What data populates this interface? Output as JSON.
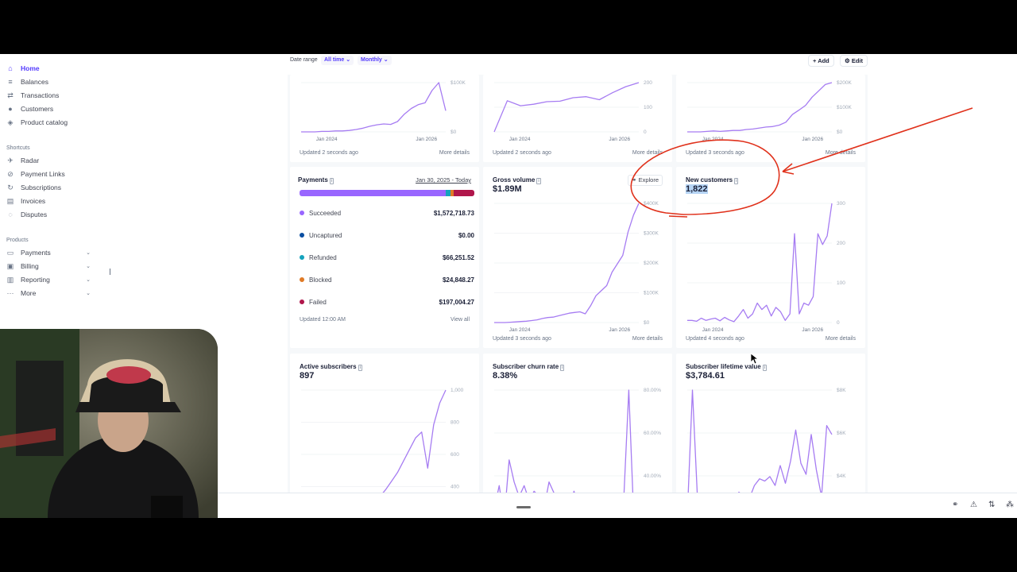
{
  "sidebar": {
    "items": [
      {
        "label": "Home",
        "icon": "home-icon",
        "active": true
      },
      {
        "label": "Balances",
        "icon": "balances-icon"
      },
      {
        "label": "Transactions",
        "icon": "transactions-icon"
      },
      {
        "label": "Customers",
        "icon": "customers-icon"
      },
      {
        "label": "Product catalog",
        "icon": "product-catalog-icon"
      }
    ],
    "shortcuts_heading": "Shortcuts",
    "shortcuts": [
      {
        "label": "Radar",
        "icon": "radar-icon"
      },
      {
        "label": "Payment Links",
        "icon": "link-icon"
      },
      {
        "label": "Subscriptions",
        "icon": "subscriptions-icon"
      },
      {
        "label": "Invoices",
        "icon": "invoice-icon"
      },
      {
        "label": "Disputes",
        "icon": "disputes-icon"
      }
    ],
    "products_heading": "Products",
    "products": [
      {
        "label": "Payments",
        "icon": "payments-icon"
      },
      {
        "label": "Billing",
        "icon": "billing-icon"
      },
      {
        "label": "Reporting",
        "icon": "reporting-icon"
      },
      {
        "label": "More",
        "icon": "more-icon"
      }
    ]
  },
  "toolbar": {
    "date_range_label": "Date range",
    "date_range_value": "All time",
    "interval_value": "Monthly",
    "add_label": "Add",
    "edit_label": "Edit"
  },
  "cards": {
    "top1": {
      "footer": "Updated 2 seconds ago",
      "more": "More details"
    },
    "top2": {
      "footer": "Updated 2 seconds ago",
      "more": "More details"
    },
    "top3": {
      "footer": "Updated 3 seconds ago",
      "more": "More details"
    },
    "payments": {
      "title": "Payments",
      "date_range": "Jan 30, 2025 - Today",
      "rows": [
        {
          "label": "Succeeded",
          "value": "$1,572,718.73",
          "color": "#9966ff"
        },
        {
          "label": "Uncaptured",
          "value": "$0.00",
          "color": "#0a4ea1"
        },
        {
          "label": "Refunded",
          "value": "$66,251.52",
          "color": "#15a3bd"
        },
        {
          "label": "Blocked",
          "value": "$24,848.27",
          "color": "#e07a26"
        },
        {
          "label": "Failed",
          "value": "$197,004.27",
          "color": "#b0164b"
        }
      ],
      "footer": "Updated 12:00 AM",
      "view_all": "View all"
    },
    "gross_volume": {
      "title": "Gross volume",
      "value": "$1.89M",
      "explore": "Explore",
      "footer": "Updated 3 seconds ago",
      "more": "More details"
    },
    "new_customers": {
      "title": "New customers",
      "value": "1,822",
      "footer": "Updated 4 seconds ago",
      "more": "More details"
    },
    "active_subscribers": {
      "title": "Active subscribers",
      "value": "897"
    },
    "churn_rate": {
      "title": "Subscriber churn rate",
      "value": "8.38%"
    },
    "lifetime_value": {
      "title": "Subscriber lifetime value",
      "value": "$3,784.61"
    }
  },
  "chart_data": [
    {
      "type": "line",
      "name": "top1",
      "x_ticks": [
        "Jan 2024",
        "Jan 2026"
      ],
      "y_ticks": [
        "$0",
        "$100K"
      ],
      "values": [
        0,
        0,
        0,
        0.01,
        0.01,
        0.02,
        0.02,
        0.03,
        0.05,
        0.08,
        0.12,
        0.15,
        0.17,
        0.16,
        0.22,
        0.38,
        0.5,
        0.58,
        0.62,
        0.88,
        1.05,
        0.45
      ]
    },
    {
      "type": "line",
      "name": "top2",
      "x_ticks": [
        "Jan 2024",
        "Jan 2026"
      ],
      "y_ticks": [
        "0",
        "100",
        "200"
      ],
      "values": [
        0,
        0.62,
        0.52,
        0.55,
        0.6,
        0.61,
        0.68,
        0.7,
        0.64,
        0.78,
        0.9,
        0.98
      ]
    },
    {
      "type": "line",
      "name": "top3",
      "x_ticks": [
        "Jan 2024",
        "Jan 2026"
      ],
      "y_ticks": [
        "$0",
        "$100K",
        "$200K"
      ],
      "values": [
        0,
        0,
        0,
        0.01,
        0.02,
        0.01,
        0.02,
        0.03,
        0.03,
        0.05,
        0.06,
        0.08,
        0.1,
        0.11,
        0.14,
        0.2,
        0.36,
        0.45,
        0.55,
        0.72,
        0.85,
        0.98,
        1.02
      ]
    },
    {
      "type": "line",
      "name": "gross_volume",
      "x_ticks": [
        "Jan 2024",
        "Jan 2026"
      ],
      "y_ticks": [
        "$0",
        "$100K",
        "$200K",
        "$300K",
        "$400K"
      ],
      "values": [
        0,
        0,
        0,
        1,
        2,
        3,
        4,
        6,
        8,
        12,
        15,
        16,
        20,
        24,
        28,
        30,
        32,
        26,
        50,
        80,
        95,
        110,
        150,
        175,
        200,
        270,
        320,
        355
      ]
    },
    {
      "type": "line",
      "name": "new_customers",
      "x_ticks": [
        "Jan 2024",
        "Jan 2026"
      ],
      "y_ticks": [
        "0",
        "100",
        "200",
        "300"
      ],
      "values": [
        5,
        5,
        3,
        10,
        5,
        8,
        10,
        4,
        12,
        6,
        2,
        15,
        30,
        10,
        20,
        45,
        30,
        40,
        15,
        35,
        25,
        5,
        20,
        205,
        20,
        45,
        40,
        60,
        205,
        180,
        200,
        275
      ]
    },
    {
      "type": "line",
      "name": "active_subscribers",
      "x_ticks": [],
      "y_ticks": [
        "200",
        "400",
        "600",
        "800",
        "1,000"
      ],
      "values": [
        0,
        0,
        0,
        0,
        5,
        10,
        12,
        15,
        20,
        25,
        30,
        40,
        80,
        150,
        200,
        260,
        320,
        400,
        480,
        560,
        600,
        350,
        650,
        800,
        890
      ]
    },
    {
      "type": "line",
      "name": "churn_rate",
      "x_ticks": [],
      "y_ticks": [
        "20.00%",
        "40.00%",
        "60.00%",
        "80.00%"
      ],
      "values": [
        5,
        18,
        0,
        32,
        20,
        12,
        18,
        10,
        15,
        12,
        6,
        20,
        14,
        8,
        12,
        6,
        15,
        8,
        10,
        5,
        12,
        6,
        10,
        5,
        8,
        6,
        12,
        70,
        0,
        5
      ]
    },
    {
      "type": "line",
      "name": "lifetime_value",
      "x_ticks": [],
      "y_ticks": [
        "$2K",
        "$4K",
        "$6K",
        "$8K"
      ],
      "values": [
        100,
        5800,
        800,
        600,
        700,
        650,
        700,
        500,
        900,
        800,
        1200,
        1000,
        900,
        1500,
        1800,
        1700,
        1900,
        1500,
        2400,
        1600,
        2600,
        4000,
        2500,
        2000,
        3800,
        2200,
        1000,
        4200,
        3800
      ]
    }
  ]
}
